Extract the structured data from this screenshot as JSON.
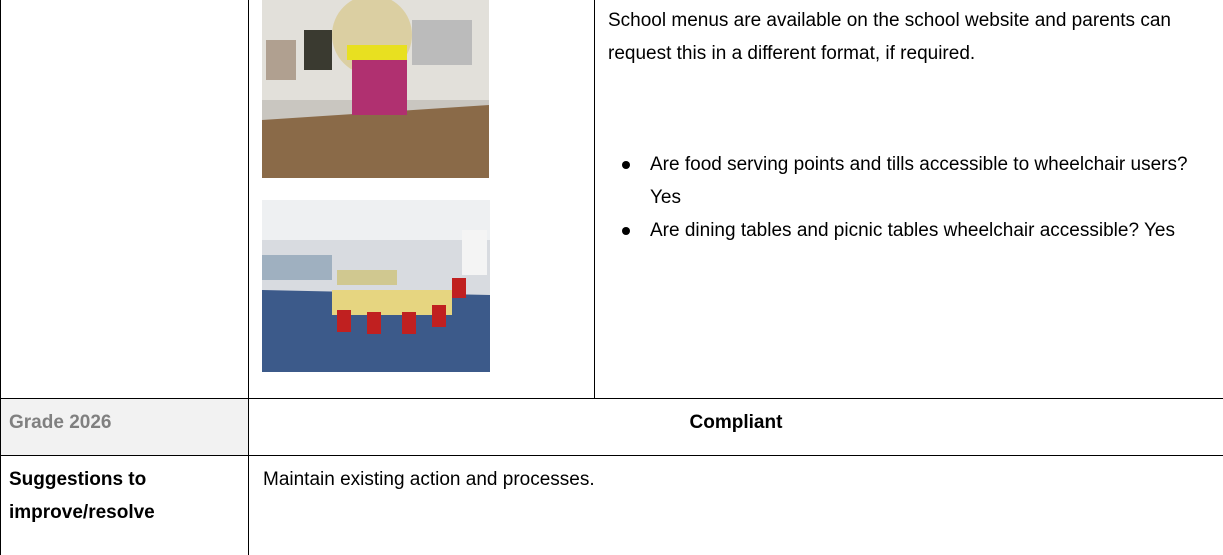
{
  "row1": {
    "text": "School menus are available on the school website and parents can request this in a different format, if required.",
    "bullets": [
      "Are food serving points and tills accessible to wheelchair users? Yes",
      "Are dining tables and picnic tables wheelchair accessible? Yes"
    ]
  },
  "grade": {
    "label": "Grade 2026",
    "value": "Compliant"
  },
  "suggestions": {
    "label": "Suggestions to improve/resolve",
    "value": "Maintain existing action and processes."
  }
}
